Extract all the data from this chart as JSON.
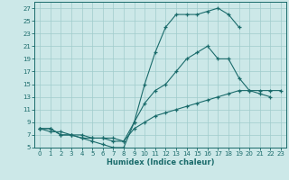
{
  "xlabel": "Humidex (Indice chaleur)",
  "bg_color": "#cce8e8",
  "grid_color": "#a0cccc",
  "line_color": "#1a6b6b",
  "xlim": [
    -0.5,
    23.5
  ],
  "ylim": [
    5,
    28
  ],
  "xticks": [
    0,
    1,
    2,
    3,
    4,
    5,
    6,
    7,
    8,
    9,
    10,
    11,
    12,
    13,
    14,
    15,
    16,
    17,
    18,
    19,
    20,
    21,
    22,
    23
  ],
  "yticks": [
    5,
    7,
    9,
    11,
    13,
    15,
    17,
    19,
    21,
    23,
    25,
    27
  ],
  "line1_y": [
    8,
    8,
    7,
    7,
    6.5,
    6,
    5.5,
    5,
    5,
    9,
    15,
    20,
    24,
    26,
    26,
    26,
    26.5,
    27,
    26,
    24,
    null,
    null,
    null,
    null
  ],
  "line2_y": [
    8,
    8,
    7,
    7,
    6.5,
    6.5,
    6.5,
    6.5,
    6,
    9,
    12,
    14,
    15,
    17,
    19,
    20,
    21,
    19,
    19,
    16,
    14,
    13.5,
    13,
    null
  ],
  "line3_y": [
    8,
    7.5,
    7.5,
    7,
    7,
    6.5,
    6.5,
    6,
    6,
    8,
    9,
    10,
    10.5,
    11,
    11.5,
    12,
    12.5,
    13,
    13.5,
    14,
    14,
    14,
    14,
    14
  ]
}
